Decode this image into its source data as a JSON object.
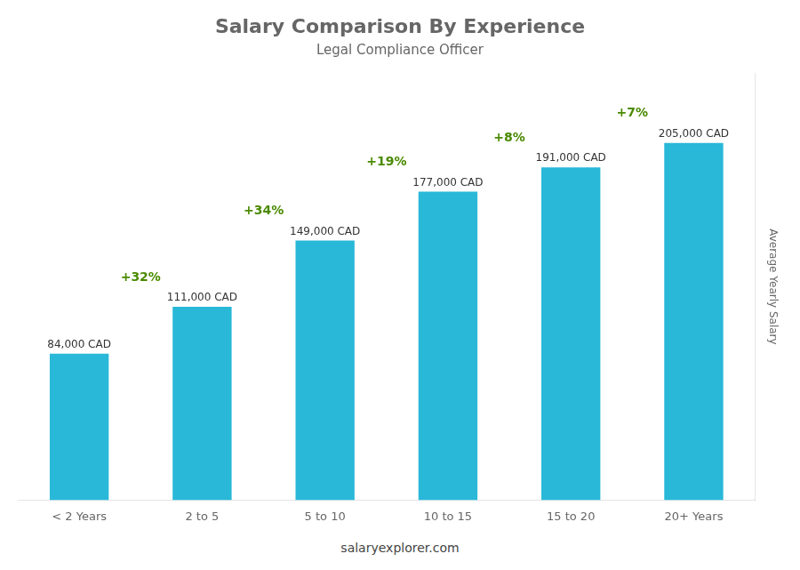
{
  "chart_data": {
    "type": "bar",
    "title": "Salary Comparison By Experience",
    "subtitle": "Legal Compliance Officer",
    "ylabel": "Average Yearly Salary",
    "categories": [
      "< 2 Years",
      "2 to 5",
      "5 to 10",
      "10 to 15",
      "15 to 20",
      "20+ Years"
    ],
    "values": [
      84000,
      111000,
      149000,
      177000,
      191000,
      205000
    ],
    "value_labels": [
      "84,000 CAD",
      "111,000 CAD",
      "149,000 CAD",
      "177,000 CAD",
      "191,000 CAD",
      "205,000 CAD"
    ],
    "data_labels": true,
    "annotations": [
      "+32%",
      "+34%",
      "+19%",
      "+8%",
      "+7%"
    ],
    "footer": "salaryexplorer.com",
    "color": "#29B8D8",
    "ylim": [
      0,
      245000
    ],
    "tick_labels": "x",
    "grid": false,
    "legend": false
  }
}
